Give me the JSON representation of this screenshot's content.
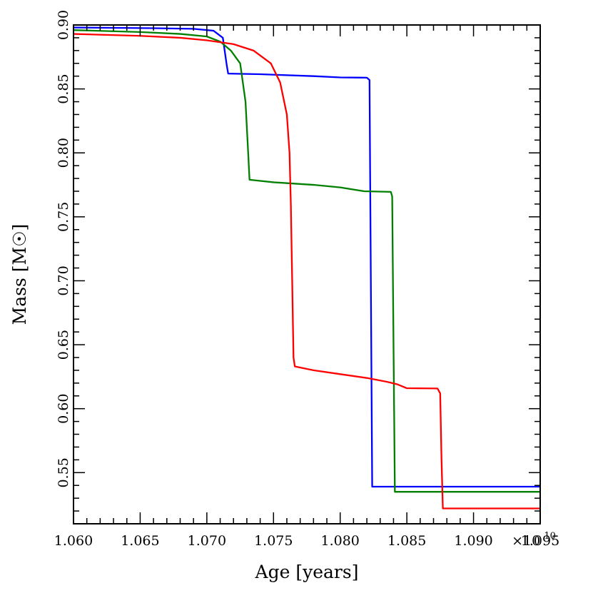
{
  "chart_data": {
    "type": "line",
    "xlabel": "Age [years]",
    "ylabel": "Mass [M☉]",
    "x_multiplier": {
      "base": "×10",
      "exponent": "10"
    },
    "xlim": [
      1.06,
      1.095
    ],
    "ylim": [
      0.51,
      0.9
    ],
    "xticks": [
      "1.060",
      "1.065",
      "1.070",
      "1.075",
      "1.080",
      "1.085",
      "1.090",
      "1.095"
    ],
    "yticks": [
      "0.55",
      "0.60",
      "0.65",
      "0.70",
      "0.75",
      "0.80",
      "0.85",
      "0.90"
    ],
    "grid": false,
    "legend": "none",
    "series": [
      {
        "color": "#0000ff",
        "points": [
          [
            1.06,
            0.898
          ],
          [
            1.066,
            0.8975
          ],
          [
            1.069,
            0.897
          ],
          [
            1.0705,
            0.8955
          ],
          [
            1.0712,
            0.89
          ],
          [
            1.0715,
            0.868
          ],
          [
            1.0716,
            0.862
          ],
          [
            1.074,
            0.8615
          ],
          [
            1.078,
            0.86
          ],
          [
            1.08,
            0.859
          ],
          [
            1.082,
            0.8588
          ],
          [
            1.0822,
            0.857
          ],
          [
            1.0823,
            0.7
          ],
          [
            1.0824,
            0.539
          ],
          [
            1.095,
            0.539
          ]
        ]
      },
      {
        "color": "#008000",
        "points": [
          [
            1.06,
            0.896
          ],
          [
            1.065,
            0.8945
          ],
          [
            1.068,
            0.893
          ],
          [
            1.07,
            0.891
          ],
          [
            1.071,
            0.887
          ],
          [
            1.0718,
            0.88
          ],
          [
            1.0725,
            0.87
          ],
          [
            1.0729,
            0.84
          ],
          [
            1.0731,
            0.8
          ],
          [
            1.0732,
            0.779
          ],
          [
            1.075,
            0.777
          ],
          [
            1.078,
            0.775
          ],
          [
            1.08,
            0.773
          ],
          [
            1.0818,
            0.77
          ],
          [
            1.0838,
            0.7695
          ],
          [
            1.0839,
            0.766
          ],
          [
            1.084,
            0.65
          ],
          [
            1.0841,
            0.535
          ],
          [
            1.095,
            0.535
          ]
        ]
      },
      {
        "color": "#ff0000",
        "points": [
          [
            1.06,
            0.893
          ],
          [
            1.065,
            0.8915
          ],
          [
            1.068,
            0.89
          ],
          [
            1.07,
            0.888
          ],
          [
            1.072,
            0.885
          ],
          [
            1.0735,
            0.88
          ],
          [
            1.0748,
            0.87
          ],
          [
            1.0755,
            0.855
          ],
          [
            1.076,
            0.83
          ],
          [
            1.0762,
            0.8
          ],
          [
            1.0763,
            0.76
          ],
          [
            1.0764,
            0.7
          ],
          [
            1.0765,
            0.64
          ],
          [
            1.0766,
            0.633
          ],
          [
            1.078,
            0.63
          ],
          [
            1.08,
            0.627
          ],
          [
            1.082,
            0.624
          ],
          [
            1.0835,
            0.621
          ],
          [
            1.0843,
            0.619
          ],
          [
            1.085,
            0.616
          ],
          [
            1.0873,
            0.6158
          ],
          [
            1.0875,
            0.612
          ],
          [
            1.0876,
            0.56
          ],
          [
            1.0877,
            0.522
          ],
          [
            1.095,
            0.522
          ]
        ]
      }
    ]
  }
}
